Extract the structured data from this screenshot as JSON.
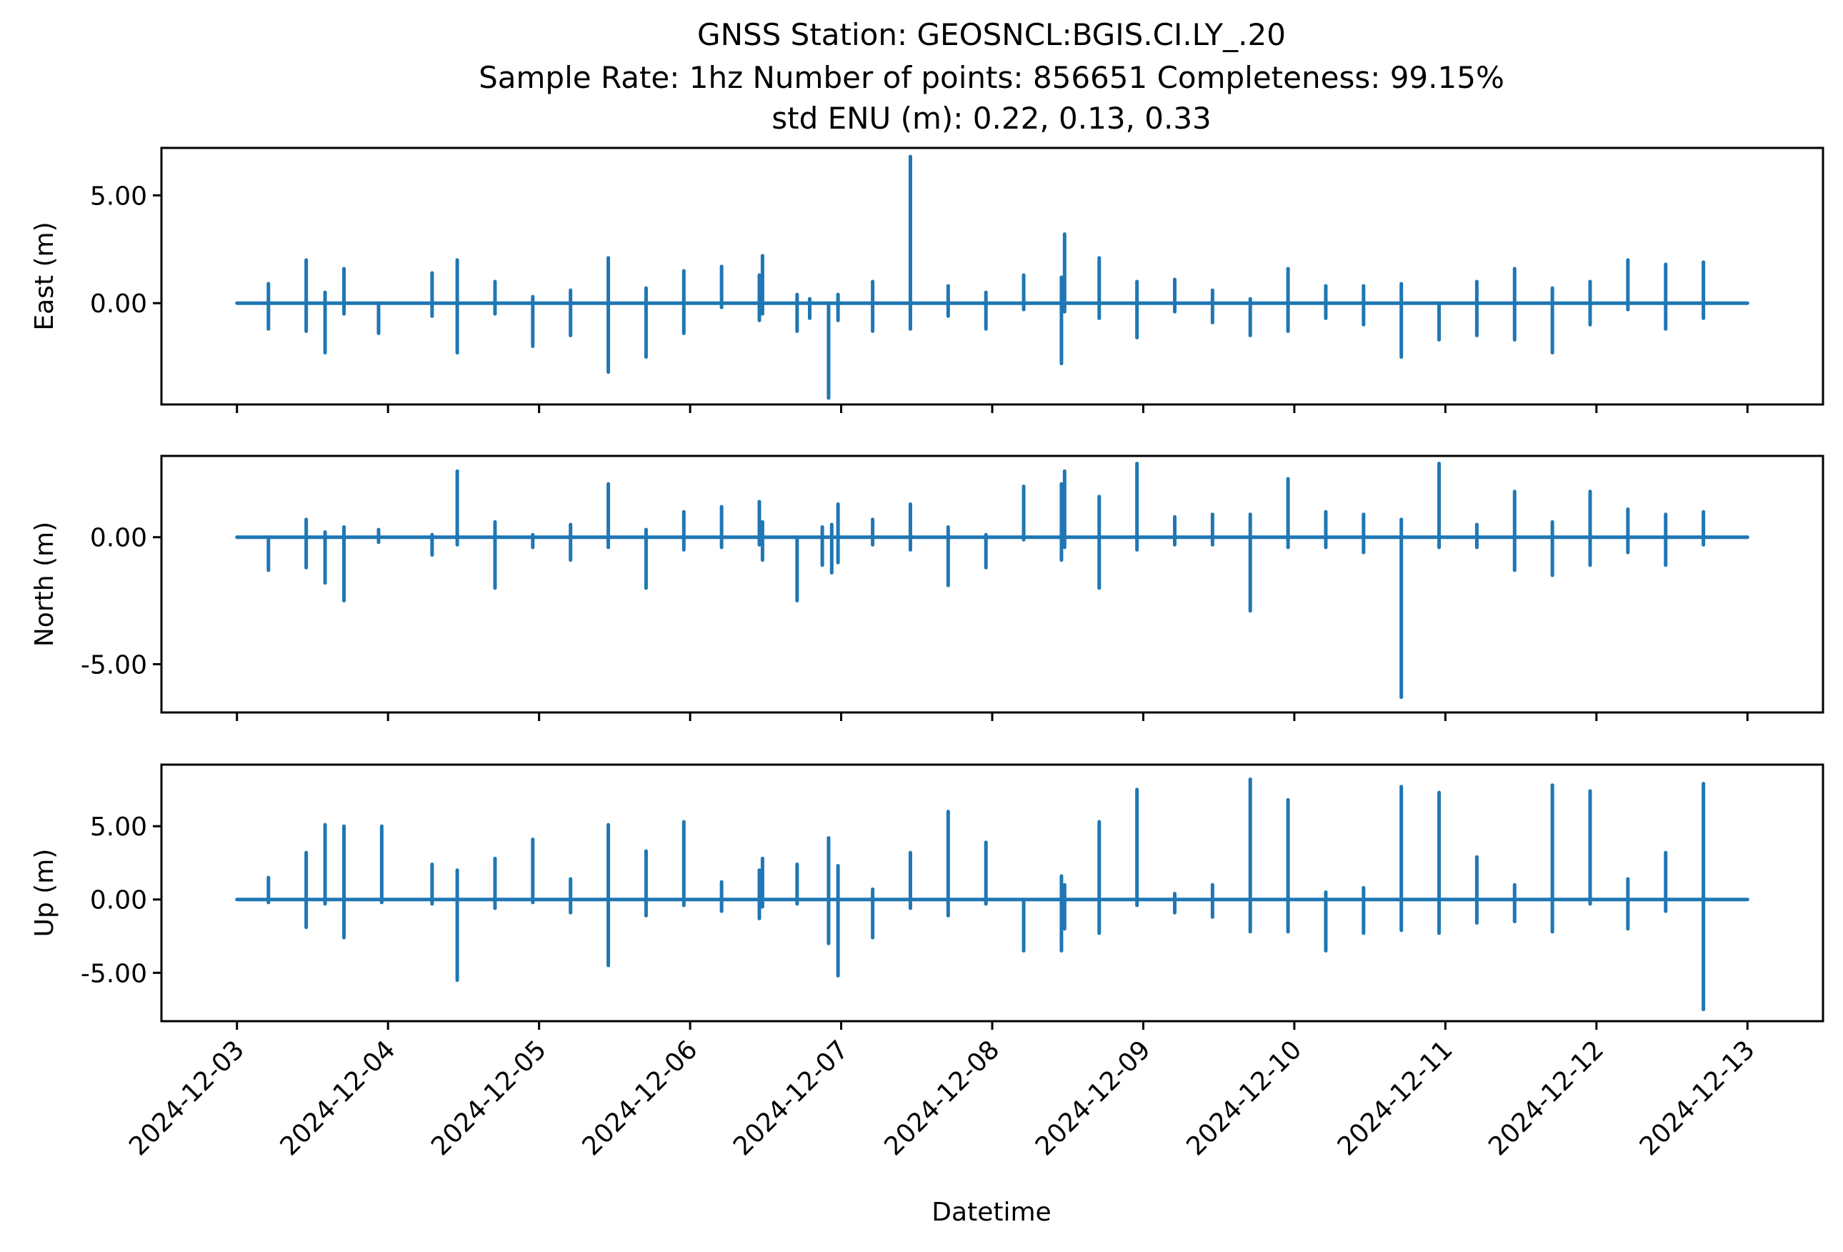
{
  "figure": {
    "title_lines": [
      "GNSS Station: GEOSNCL:BGIS.CI.LY_.20",
      "Sample Rate: 1hz   Number of points: 856651    Completeness:  99.15%",
      "std ENU (m):  0.22, 0.13, 0.33"
    ],
    "xlabel": "Datetime",
    "line_color": "#1f77b4"
  },
  "chart_data": {
    "type": "line",
    "x_type": "datetime",
    "x_ticks": [
      "2024-12-03",
      "2024-12-04",
      "2024-12-05",
      "2024-12-06",
      "2024-12-07",
      "2024-12-08",
      "2024-12-09",
      "2024-12-10",
      "2024-12-11",
      "2024-12-12",
      "2024-12-13"
    ],
    "xlim": [
      "2024-12-02T12:00",
      "2024-12-13T12:00"
    ],
    "data_range": [
      "2024-12-03T00:00",
      "2024-12-13T00:00"
    ],
    "panels": [
      {
        "name": "East",
        "ylabel": "East (m)",
        "ylim": [
          -4.7,
          7.2
        ],
        "y_ticks": [
          {
            "value": 5.0,
            "label": "5.00"
          },
          {
            "value": 0.0,
            "label": "0.00"
          }
        ],
        "spikes": [
          {
            "t": "2024-12-03T05:00",
            "max": 0.9,
            "min": -1.2
          },
          {
            "t": "2024-12-03T11:00",
            "max": 2.0,
            "min": -1.3
          },
          {
            "t": "2024-12-03T14:00",
            "max": 0.5,
            "min": -2.3
          },
          {
            "t": "2024-12-03T17:00",
            "max": 1.6,
            "min": -0.5
          },
          {
            "t": "2024-12-03T22:30",
            "max": 0.0,
            "min": -1.4
          },
          {
            "t": "2024-12-04T07:00",
            "max": 1.4,
            "min": -0.6
          },
          {
            "t": "2024-12-04T11:00",
            "max": 2.0,
            "min": -2.3
          },
          {
            "t": "2024-12-04T17:00",
            "max": 1.0,
            "min": -0.5
          },
          {
            "t": "2024-12-04T23:00",
            "max": 0.3,
            "min": -2.0
          },
          {
            "t": "2024-12-05T05:00",
            "max": 0.6,
            "min": -1.5
          },
          {
            "t": "2024-12-05T11:00",
            "max": 2.1,
            "min": -3.2
          },
          {
            "t": "2024-12-05T17:00",
            "max": 0.7,
            "min": -2.5
          },
          {
            "t": "2024-12-05T23:00",
            "max": 1.5,
            "min": -1.4
          },
          {
            "t": "2024-12-06T05:00",
            "max": 1.7,
            "min": -0.2
          },
          {
            "t": "2024-12-06T11:00",
            "max": 1.3,
            "min": -0.8
          },
          {
            "t": "2024-12-06T11:30",
            "max": 2.2,
            "min": -0.5
          },
          {
            "t": "2024-12-06T17:00",
            "max": 0.4,
            "min": -1.3
          },
          {
            "t": "2024-12-06T19:00",
            "max": 0.2,
            "min": -0.7
          },
          {
            "t": "2024-12-06T22:00",
            "max": 0.0,
            "min": -4.4
          },
          {
            "t": "2024-12-06T23:30",
            "max": 0.4,
            "min": -0.8
          },
          {
            "t": "2024-12-07T05:00",
            "max": 1.0,
            "min": -1.3
          },
          {
            "t": "2024-12-07T11:00",
            "max": 6.8,
            "min": -1.2
          },
          {
            "t": "2024-12-07T17:00",
            "max": 0.8,
            "min": -0.6
          },
          {
            "t": "2024-12-07T23:00",
            "max": 0.5,
            "min": -1.2
          },
          {
            "t": "2024-12-08T05:00",
            "max": 1.3,
            "min": -0.3
          },
          {
            "t": "2024-12-08T11:00",
            "max": 1.2,
            "min": -2.8
          },
          {
            "t": "2024-12-08T11:30",
            "max": 3.2,
            "min": -0.4
          },
          {
            "t": "2024-12-08T17:00",
            "max": 2.1,
            "min": -0.7
          },
          {
            "t": "2024-12-08T23:00",
            "max": 1.0,
            "min": -1.6
          },
          {
            "t": "2024-12-09T05:00",
            "max": 1.1,
            "min": -0.4
          },
          {
            "t": "2024-12-09T11:00",
            "max": 0.6,
            "min": -0.9
          },
          {
            "t": "2024-12-09T17:00",
            "max": 0.2,
            "min": -1.5
          },
          {
            "t": "2024-12-09T23:00",
            "max": 1.6,
            "min": -1.3
          },
          {
            "t": "2024-12-10T05:00",
            "max": 0.8,
            "min": -0.7
          },
          {
            "t": "2024-12-10T11:00",
            "max": 0.8,
            "min": -1.0
          },
          {
            "t": "2024-12-10T17:00",
            "max": 0.9,
            "min": -2.5
          },
          {
            "t": "2024-12-10T23:00",
            "max": 0.0,
            "min": -1.7
          },
          {
            "t": "2024-12-11T05:00",
            "max": 1.0,
            "min": -1.5
          },
          {
            "t": "2024-12-11T11:00",
            "max": 1.6,
            "min": -1.7
          },
          {
            "t": "2024-12-11T17:00",
            "max": 0.7,
            "min": -2.3
          },
          {
            "t": "2024-12-11T23:00",
            "max": 1.0,
            "min": -1.0
          },
          {
            "t": "2024-12-12T05:00",
            "max": 2.0,
            "min": -0.3
          },
          {
            "t": "2024-12-12T11:00",
            "max": 1.8,
            "min": -1.2
          },
          {
            "t": "2024-12-12T17:00",
            "max": 1.9,
            "min": -0.7
          }
        ]
      },
      {
        "name": "North",
        "ylabel": "North (m)",
        "ylim": [
          -6.9,
          3.2
        ],
        "y_ticks": [
          {
            "value": 0.0,
            "label": "0.00"
          },
          {
            "value": -5.0,
            "label": "-5.00"
          }
        ],
        "spikes": [
          {
            "t": "2024-12-03T05:00",
            "max": 0.0,
            "min": -1.3
          },
          {
            "t": "2024-12-03T11:00",
            "max": 0.7,
            "min": -1.2
          },
          {
            "t": "2024-12-03T14:00",
            "max": 0.2,
            "min": -1.8
          },
          {
            "t": "2024-12-03T17:00",
            "max": 0.4,
            "min": -2.5
          },
          {
            "t": "2024-12-03T22:30",
            "max": 0.3,
            "min": -0.2
          },
          {
            "t": "2024-12-04T07:00",
            "max": 0.1,
            "min": -0.7
          },
          {
            "t": "2024-12-04T11:00",
            "max": 2.6,
            "min": -0.3
          },
          {
            "t": "2024-12-04T17:00",
            "max": 0.6,
            "min": -2.0
          },
          {
            "t": "2024-12-04T23:00",
            "max": 0.1,
            "min": -0.4
          },
          {
            "t": "2024-12-05T05:00",
            "max": 0.5,
            "min": -0.9
          },
          {
            "t": "2024-12-05T11:00",
            "max": 2.1,
            "min": -0.4
          },
          {
            "t": "2024-12-05T17:00",
            "max": 0.3,
            "min": -2.0
          },
          {
            "t": "2024-12-05T23:00",
            "max": 1.0,
            "min": -0.5
          },
          {
            "t": "2024-12-06T05:00",
            "max": 1.2,
            "min": -0.4
          },
          {
            "t": "2024-12-06T11:00",
            "max": 1.4,
            "min": -0.3
          },
          {
            "t": "2024-12-06T11:30",
            "max": 0.6,
            "min": -0.9
          },
          {
            "t": "2024-12-06T17:00",
            "max": 0.0,
            "min": -2.5
          },
          {
            "t": "2024-12-06T21:00",
            "max": 0.4,
            "min": -1.1
          },
          {
            "t": "2024-12-06T22:30",
            "max": 0.5,
            "min": -1.4
          },
          {
            "t": "2024-12-06T23:30",
            "max": 1.3,
            "min": -1.0
          },
          {
            "t": "2024-12-07T05:00",
            "max": 0.7,
            "min": -0.3
          },
          {
            "t": "2024-12-07T11:00",
            "max": 1.3,
            "min": -0.5
          },
          {
            "t": "2024-12-07T17:00",
            "max": 0.4,
            "min": -1.9
          },
          {
            "t": "2024-12-07T23:00",
            "max": 0.1,
            "min": -1.2
          },
          {
            "t": "2024-12-08T05:00",
            "max": 2.0,
            "min": -0.1
          },
          {
            "t": "2024-12-08T11:00",
            "max": 2.1,
            "min": -0.9
          },
          {
            "t": "2024-12-08T11:30",
            "max": 2.6,
            "min": -0.4
          },
          {
            "t": "2024-12-08T17:00",
            "max": 1.6,
            "min": -2.0
          },
          {
            "t": "2024-12-08T23:00",
            "max": 2.9,
            "min": -0.5
          },
          {
            "t": "2024-12-09T05:00",
            "max": 0.8,
            "min": -0.3
          },
          {
            "t": "2024-12-09T11:00",
            "max": 0.9,
            "min": -0.3
          },
          {
            "t": "2024-12-09T17:00",
            "max": 0.9,
            "min": -2.9
          },
          {
            "t": "2024-12-09T23:00",
            "max": 2.3,
            "min": -0.4
          },
          {
            "t": "2024-12-10T05:00",
            "max": 1.0,
            "min": -0.4
          },
          {
            "t": "2024-12-10T11:00",
            "max": 0.9,
            "min": -0.6
          },
          {
            "t": "2024-12-10T17:00",
            "max": 0.7,
            "min": -6.3
          },
          {
            "t": "2024-12-10T23:00",
            "max": 2.9,
            "min": -0.4
          },
          {
            "t": "2024-12-11T05:00",
            "max": 0.5,
            "min": -0.4
          },
          {
            "t": "2024-12-11T11:00",
            "max": 1.8,
            "min": -1.3
          },
          {
            "t": "2024-12-11T17:00",
            "max": 0.6,
            "min": -1.5
          },
          {
            "t": "2024-12-11T23:00",
            "max": 1.8,
            "min": -1.1
          },
          {
            "t": "2024-12-12T05:00",
            "max": 1.1,
            "min": -0.6
          },
          {
            "t": "2024-12-12T11:00",
            "max": 0.9,
            "min": -1.1
          },
          {
            "t": "2024-12-12T17:00",
            "max": 1.0,
            "min": -0.3
          }
        ]
      },
      {
        "name": "Up",
        "ylabel": "Up (m)",
        "ylim": [
          -8.3,
          9.2
        ],
        "y_ticks": [
          {
            "value": 5.0,
            "label": "5.00"
          },
          {
            "value": 0.0,
            "label": "0.00"
          },
          {
            "value": -5.0,
            "label": "-5.00"
          }
        ],
        "spikes": [
          {
            "t": "2024-12-03T05:00",
            "max": 1.5,
            "min": -0.2
          },
          {
            "t": "2024-12-03T11:00",
            "max": 3.2,
            "min": -1.9
          },
          {
            "t": "2024-12-03T14:00",
            "max": 5.1,
            "min": -0.3
          },
          {
            "t": "2024-12-03T17:00",
            "max": 5.0,
            "min": -2.6
          },
          {
            "t": "2024-12-03T23:00",
            "max": 5.0,
            "min": -0.2
          },
          {
            "t": "2024-12-04T07:00",
            "max": 2.4,
            "min": -0.3
          },
          {
            "t": "2024-12-04T11:00",
            "max": 2.0,
            "min": -5.5
          },
          {
            "t": "2024-12-04T17:00",
            "max": 2.8,
            "min": -0.6
          },
          {
            "t": "2024-12-04T23:00",
            "max": 4.1,
            "min": -0.2
          },
          {
            "t": "2024-12-05T05:00",
            "max": 1.4,
            "min": -0.9
          },
          {
            "t": "2024-12-05T11:00",
            "max": 5.1,
            "min": -4.5
          },
          {
            "t": "2024-12-05T17:00",
            "max": 3.3,
            "min": -1.1
          },
          {
            "t": "2024-12-05T23:00",
            "max": 5.3,
            "min": -0.4
          },
          {
            "t": "2024-12-06T05:00",
            "max": 1.2,
            "min": -0.8
          },
          {
            "t": "2024-12-06T11:00",
            "max": 2.0,
            "min": -1.3
          },
          {
            "t": "2024-12-06T11:30",
            "max": 2.8,
            "min": -0.5
          },
          {
            "t": "2024-12-06T17:00",
            "max": 2.4,
            "min": -0.3
          },
          {
            "t": "2024-12-06T22:00",
            "max": 4.2,
            "min": -3.0
          },
          {
            "t": "2024-12-06T23:30",
            "max": 2.3,
            "min": -5.2
          },
          {
            "t": "2024-12-07T05:00",
            "max": 0.7,
            "min": -2.6
          },
          {
            "t": "2024-12-07T11:00",
            "max": 3.2,
            "min": -0.6
          },
          {
            "t": "2024-12-07T17:00",
            "max": 6.0,
            "min": -1.1
          },
          {
            "t": "2024-12-07T23:00",
            "max": 3.9,
            "min": -0.3
          },
          {
            "t": "2024-12-08T05:00",
            "max": 0.0,
            "min": -3.5
          },
          {
            "t": "2024-12-08T11:00",
            "max": 1.6,
            "min": -3.5
          },
          {
            "t": "2024-12-08T11:30",
            "max": 1.0,
            "min": -2.0
          },
          {
            "t": "2024-12-08T17:00",
            "max": 5.3,
            "min": -2.3
          },
          {
            "t": "2024-12-08T23:00",
            "max": 7.5,
            "min": -0.4
          },
          {
            "t": "2024-12-09T05:00",
            "max": 0.4,
            "min": -0.9
          },
          {
            "t": "2024-12-09T11:00",
            "max": 1.0,
            "min": -1.2
          },
          {
            "t": "2024-12-09T17:00",
            "max": 8.2,
            "min": -2.2
          },
          {
            "t": "2024-12-09T23:00",
            "max": 6.8,
            "min": -2.2
          },
          {
            "t": "2024-12-10T05:00",
            "max": 0.5,
            "min": -3.5
          },
          {
            "t": "2024-12-10T11:00",
            "max": 0.8,
            "min": -2.3
          },
          {
            "t": "2024-12-10T17:00",
            "max": 7.7,
            "min": -2.1
          },
          {
            "t": "2024-12-10T23:00",
            "max": 7.3,
            "min": -2.3
          },
          {
            "t": "2024-12-11T05:00",
            "max": 2.9,
            "min": -1.6
          },
          {
            "t": "2024-12-11T11:00",
            "max": 1.0,
            "min": -1.5
          },
          {
            "t": "2024-12-11T17:00",
            "max": 7.8,
            "min": -2.2
          },
          {
            "t": "2024-12-11T23:00",
            "max": 7.4,
            "min": -0.3
          },
          {
            "t": "2024-12-12T05:00",
            "max": 1.4,
            "min": -2.0
          },
          {
            "t": "2024-12-12T11:00",
            "max": 3.2,
            "min": -0.8
          },
          {
            "t": "2024-12-12T17:00",
            "max": 7.9,
            "min": -7.5
          }
        ]
      }
    ]
  }
}
